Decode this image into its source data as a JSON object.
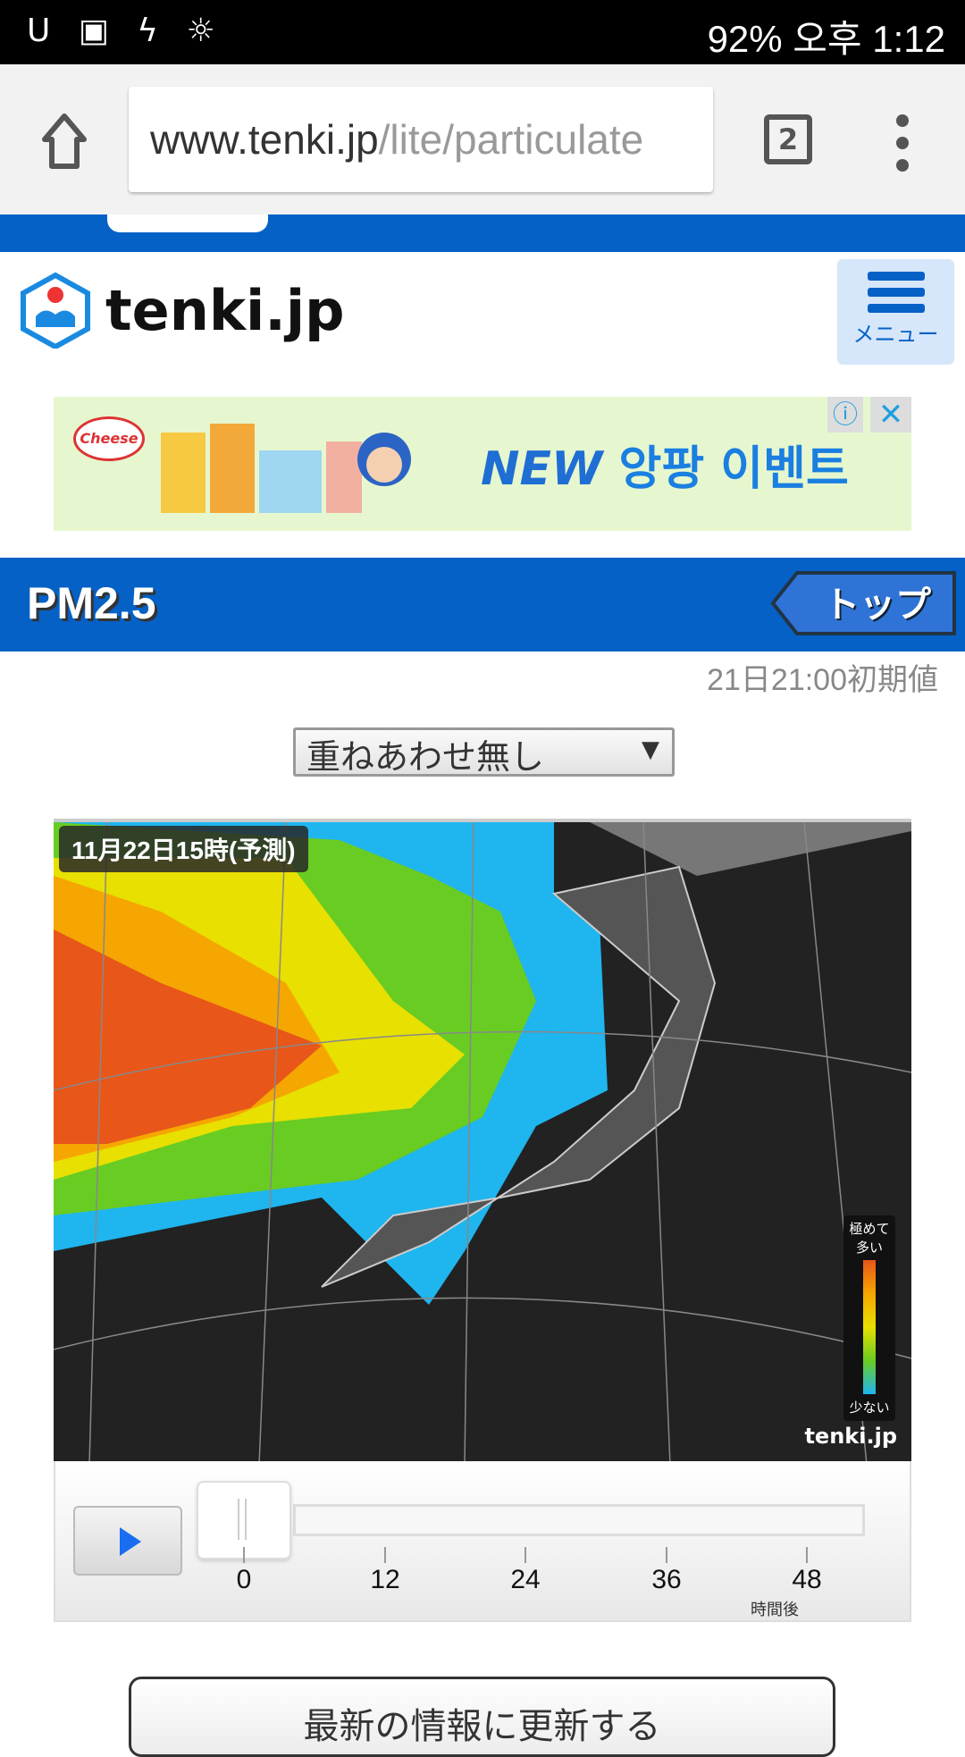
{
  "status_bar": {
    "left_icons": "U ▣ ϟ ☼",
    "signal": "92%",
    "time": "오후 1:12"
  },
  "browser": {
    "url_host": "www.tenki.jp",
    "url_path": "/lite/particulate",
    "tab_count": "2"
  },
  "header": {
    "logo_text": "tenki.jp",
    "menu_label": "メニュー"
  },
  "ad": {
    "brand": "Cheese",
    "headline_new": "NEW",
    "headline": "앙팡 이벤트",
    "info": "ⓘ",
    "close": "✕"
  },
  "section": {
    "title": "PM2.5",
    "top_button": "トップ",
    "initial_time": "21日21:00初期値"
  },
  "overlay_select": {
    "value": "重ねあわせ無し",
    "arrow": "▼"
  },
  "map": {
    "time_label": "11月22日15時(予測)",
    "legend_high": "極めて多い",
    "legend_low": "少ない",
    "watermark": "tenki.jp",
    "legend_colors": [
      "#e8561a",
      "#f5a600",
      "#e7e000",
      "#69cc22",
      "#1fb5ee"
    ]
  },
  "slider": {
    "ticks": [
      "0",
      "12",
      "24",
      "36",
      "48"
    ],
    "unit": "時間後",
    "value_hours": 0,
    "max_hours": 48
  },
  "refresh_button": "最新の情報に更新する"
}
